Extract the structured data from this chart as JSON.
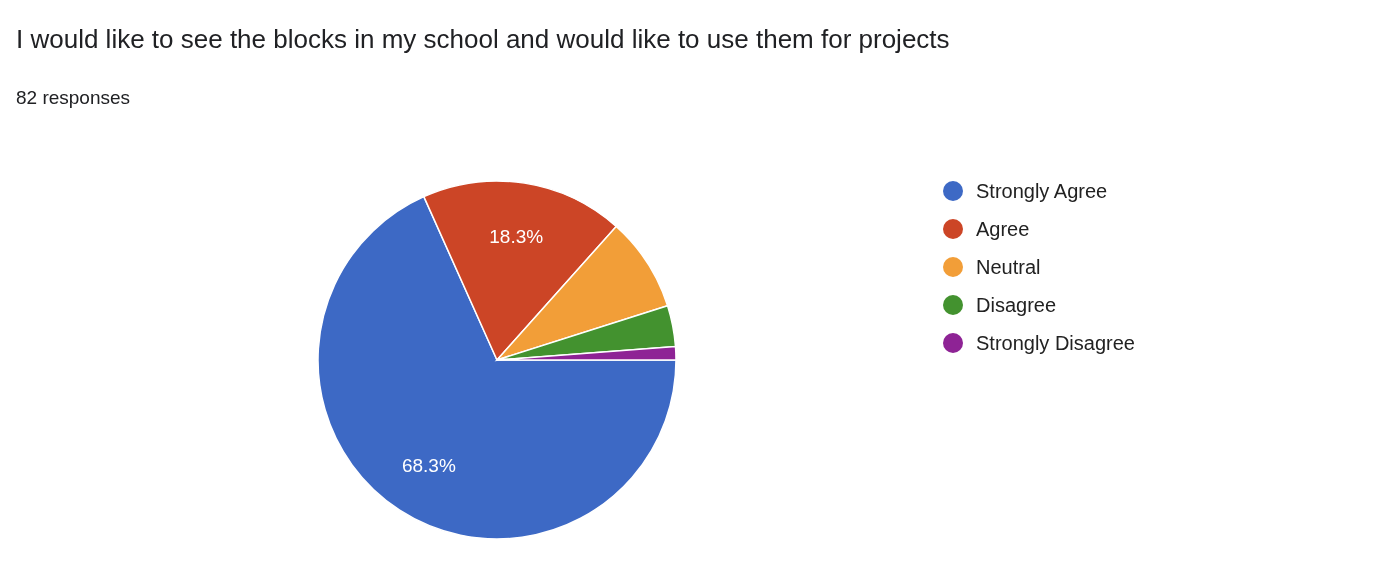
{
  "chart_data": {
    "type": "pie",
    "title": "I would like to see the blocks in my school and would like to use them for projects",
    "subtitle": "82 responses",
    "categories": [
      "Strongly Agree",
      "Agree",
      "Neutral",
      "Disagree",
      "Strongly Disagree"
    ],
    "values": [
      68.3,
      18.3,
      8.5,
      3.7,
      1.2
    ],
    "colors": [
      "#3d69c5",
      "#cc4526",
      "#f29e38",
      "#43922f",
      "#8e2395"
    ],
    "value_labels": [
      "68.3%",
      "18.3%",
      null,
      null,
      null
    ],
    "legend": "right"
  }
}
